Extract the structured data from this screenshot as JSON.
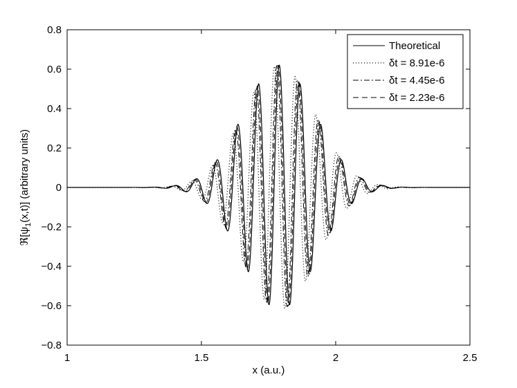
{
  "chart_data": {
    "type": "line",
    "title": "",
    "xlabel": "x (a.u.)",
    "ylabel_prefix": "ℜ[ψ",
    "ylabel_subscript": "1",
    "ylabel_suffix": "(x,t)] (arbitrary units)",
    "xlim": [
      1,
      2.5
    ],
    "ylim": [
      -0.8,
      0.8
    ],
    "xticks": [
      1,
      1.5,
      2,
      2.5
    ],
    "xtick_labels": [
      "1",
      "1.5",
      "2",
      "2.5"
    ],
    "yticks": [
      -0.8,
      -0.6,
      -0.4,
      -0.2,
      0,
      0.2,
      0.4,
      0.6,
      0.8
    ],
    "ytick_labels": [
      "−0.8",
      "−0.6",
      "−0.4",
      "−0.2",
      "0",
      "0.2",
      "0.4",
      "0.6",
      "0.8"
    ],
    "grid": false,
    "legend_position": "top-right",
    "wave_packet": {
      "amplitude": 0.62,
      "center": 1.79,
      "width": 0.19,
      "wavelength": 0.0775,
      "peak_max_x": 1.79
    },
    "series": [
      {
        "name": "Theoretical",
        "style": "solid",
        "phase_shift_x": 0.0
      },
      {
        "name": "δt = 8.91e-6",
        "style": "dotted",
        "phase_shift_x": -0.018
      },
      {
        "name": "δt = 4.45e-6",
        "style": "dashdot",
        "phase_shift_x": -0.009
      },
      {
        "name": "δt = 2.23e-6",
        "style": "dashed",
        "phase_shift_x": -0.0045
      }
    ]
  }
}
